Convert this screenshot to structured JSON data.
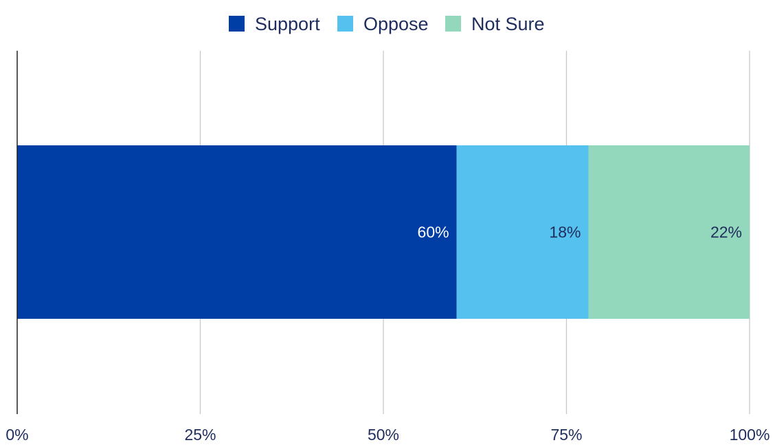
{
  "chart_data": {
    "type": "bar",
    "orientation": "horizontal",
    "stacked": true,
    "categories": [
      ""
    ],
    "series": [
      {
        "name": "Support",
        "values": [
          60
        ],
        "label": "60%",
        "color": "#003da5",
        "label_color": "#ffffff"
      },
      {
        "name": "Oppose",
        "values": [
          18
        ],
        "label": "18%",
        "color": "#55c1ee",
        "label_color": "#1f2d5c"
      },
      {
        "name": "Not Sure",
        "values": [
          22
        ],
        "label": "22%",
        "color": "#93d7bc",
        "label_color": "#1f2d5c"
      }
    ],
    "xlim": [
      0,
      100
    ],
    "x_ticks": [
      {
        "value": 0,
        "label": "0%"
      },
      {
        "value": 25,
        "label": "25%"
      },
      {
        "value": 50,
        "label": "50%"
      },
      {
        "value": 75,
        "label": "75%"
      },
      {
        "value": 100,
        "label": "100%"
      }
    ],
    "grid": true,
    "legend_position": "top-center",
    "title": "",
    "xlabel": "",
    "ylabel": ""
  }
}
